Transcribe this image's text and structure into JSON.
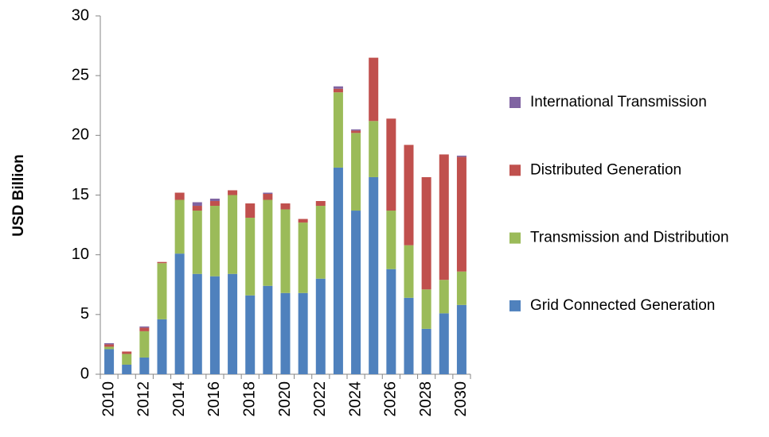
{
  "chart_data": {
    "type": "stacked-bar",
    "y_label": "USD Billion",
    "categories": [
      "2010",
      null,
      "2012",
      null,
      "2014",
      null,
      "2016",
      null,
      "2018",
      null,
      "2020",
      null,
      "2022",
      null,
      "2024",
      null,
      "2026",
      null,
      "2028",
      null,
      "2030"
    ],
    "series": [
      {
        "name": "Grid Connected Generation",
        "color": "#4f81bd",
        "values": [
          2.1,
          0.8,
          1.4,
          4.6,
          10.1,
          8.4,
          8.2,
          8.4,
          6.6,
          7.4,
          6.8,
          6.8,
          8.0,
          17.3,
          13.7,
          16.5,
          8.8,
          6.4,
          3.8,
          5.1,
          5.8
        ]
      },
      {
        "name": "Transmission and Distribution",
        "color": "#9bbb59",
        "values": [
          0.2,
          0.9,
          2.2,
          4.7,
          4.5,
          5.3,
          5.9,
          6.6,
          6.5,
          7.2,
          7.0,
          5.9,
          6.1,
          6.3,
          6.5,
          4.7,
          4.9,
          4.4,
          3.3,
          2.8,
          2.8
        ]
      },
      {
        "name": "Distributed Generation",
        "color": "#c0504d",
        "values": [
          0.2,
          0.2,
          0.3,
          0.1,
          0.6,
          0.4,
          0.4,
          0.4,
          1.2,
          0.5,
          0.5,
          0.3,
          0.4,
          0.3,
          0.2,
          5.3,
          7.7,
          8.4,
          9.4,
          10.5,
          9.6
        ]
      },
      {
        "name": "International Transmission",
        "color": "#8064a2",
        "values": [
          0.1,
          0,
          0.1,
          0,
          0,
          0.3,
          0.2,
          0,
          0,
          0.1,
          0,
          0,
          0,
          0.2,
          0.1,
          0,
          0,
          0,
          0,
          0,
          0.1
        ]
      }
    ],
    "ylim": [
      0,
      30
    ],
    "yticks": [
      0,
      5,
      10,
      15,
      20,
      25,
      30
    ],
    "grid": false,
    "legend": "right"
  }
}
